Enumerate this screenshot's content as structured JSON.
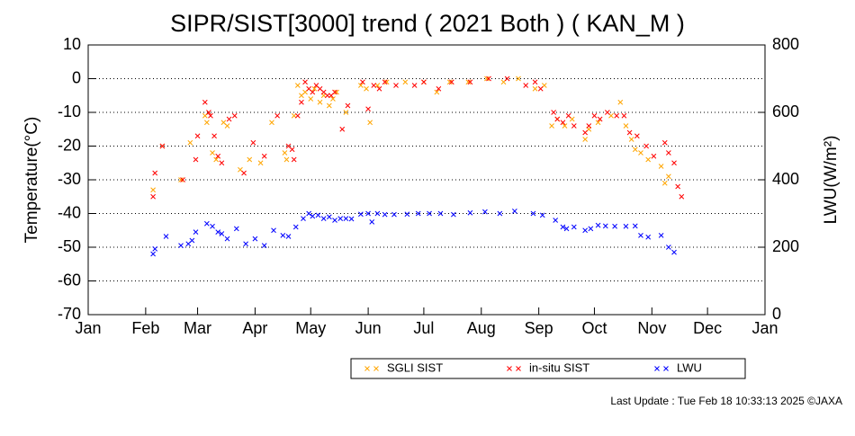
{
  "chart_data": {
    "type": "scatter",
    "title": "SIPR/SIST[3000] trend ( 2021 Both ) ( KAN_M )",
    "y_label": "Temperature(°C)",
    "y2_label": "LWU(W/m²)",
    "footer": "Last Update : Tue Feb 18 10:33:13 2025 ©JAXA",
    "xlim": [
      0,
      365
    ],
    "xticks": [
      {
        "value": 0,
        "label": "Jan"
      },
      {
        "value": 31,
        "label": "Feb"
      },
      {
        "value": 59,
        "label": "Mar"
      },
      {
        "value": 90,
        "label": "Apr"
      },
      {
        "value": 120,
        "label": "May"
      },
      {
        "value": 151,
        "label": "Jun"
      },
      {
        "value": 181,
        "label": "Jul"
      },
      {
        "value": 212,
        "label": "Aug"
      },
      {
        "value": 243,
        "label": "Sep"
      },
      {
        "value": 273,
        "label": "Oct"
      },
      {
        "value": 304,
        "label": "Nov"
      },
      {
        "value": 334,
        "label": "Dec"
      },
      {
        "value": 365,
        "label": "Jan"
      }
    ],
    "ylim": [
      -70,
      10
    ],
    "yticks": [
      -70,
      -60,
      -50,
      -40,
      -30,
      -20,
      -10,
      0,
      10
    ],
    "y2lim": [
      0,
      800
    ],
    "y2ticks": [
      0,
      200,
      400,
      600,
      800
    ],
    "grid": true,
    "series": [
      {
        "name": "SGLI SIST",
        "color": "#ffa500",
        "x": [
          35,
          40,
          50,
          55,
          63,
          64,
          67,
          69,
          73,
          75,
          82,
          87,
          93,
          99,
          106,
          107,
          111,
          113,
          115,
          117,
          120,
          122,
          125,
          127,
          130,
          132,
          134,
          139,
          147,
          150,
          152,
          156,
          161,
          171,
          181,
          188,
          195,
          205,
          215,
          224,
          232,
          241,
          246,
          250,
          253,
          257,
          261,
          268,
          270,
          275,
          282,
          287,
          290,
          293,
          295,
          298,
          302,
          309,
          311,
          313
        ],
        "values": [
          -33,
          -20,
          -30,
          -19,
          -11,
          -13,
          -22,
          -24,
          -13,
          -14,
          -27,
          -24,
          -25,
          -13,
          -22,
          -24,
          -11,
          -2,
          -5,
          -4,
          -6,
          -3,
          -7,
          -5,
          -8,
          -6,
          -4,
          -10,
          -2,
          -3,
          -13,
          -2,
          -1,
          -1,
          -1,
          -4,
          -1,
          -1,
          0,
          -1,
          0,
          -3,
          -2,
          -14,
          -12,
          -14,
          -12,
          -18,
          -15,
          -13,
          -11,
          -7,
          -14,
          -18,
          -21,
          -22,
          -24,
          -26,
          -31,
          -29
        ]
      },
      {
        "name": "in-situ SIST",
        "color": "#ff0000",
        "x": [
          35,
          36,
          40,
          51,
          58,
          59,
          63,
          65,
          66,
          68,
          70,
          72,
          76,
          79,
          84,
          89,
          95,
          102,
          108,
          110,
          111,
          113,
          115,
          117,
          119,
          121,
          123,
          125,
          127,
          129,
          131,
          133,
          137,
          140,
          148,
          151,
          154,
          157,
          160,
          166,
          176,
          181,
          189,
          196,
          206,
          216,
          226,
          236,
          241,
          244,
          251,
          253,
          256,
          259,
          262,
          268,
          270,
          273,
          276,
          280,
          285,
          289,
          292,
          296,
          301,
          305,
          311,
          313,
          316,
          318,
          320
        ],
        "values": [
          -35,
          -28,
          -20,
          -30,
          -24,
          -17,
          -7,
          -10,
          -11,
          -17,
          -23,
          -25,
          -12,
          -11,
          -28,
          -19,
          -23,
          -11,
          -20,
          -21,
          -24,
          -11,
          -7,
          -1,
          -3,
          -4,
          -2,
          -3,
          -4,
          -5,
          -5,
          -4,
          -15,
          -8,
          -1,
          -9,
          -2,
          -3,
          -1,
          -2,
          -2,
          -1,
          -3,
          -1,
          -1,
          0,
          0,
          -2,
          -1,
          -3,
          -10,
          -12,
          -13,
          -11,
          -14,
          -16,
          -14,
          -11,
          -12,
          -10,
          -11,
          -11,
          -16,
          -17,
          -20,
          -23,
          -19,
          -22,
          -25,
          -32,
          -35
        ]
      },
      {
        "name": "LWU",
        "color": "#0000ff",
        "axis": "y2",
        "x": [
          35,
          36,
          42,
          50,
          54,
          56,
          58,
          64,
          67,
          70,
          72,
          75,
          80,
          85,
          90,
          95,
          100,
          105,
          108,
          112,
          116,
          119,
          121,
          124,
          127,
          130,
          133,
          136,
          139,
          142,
          147,
          151,
          153,
          156,
          160,
          165,
          172,
          178,
          184,
          190,
          197,
          206,
          214,
          222,
          230,
          240,
          245,
          252,
          256,
          258,
          262,
          268,
          271,
          275,
          279,
          284,
          290,
          295,
          298,
          302,
          309,
          313,
          316
        ],
        "values": [
          180,
          195,
          232,
          205,
          210,
          220,
          245,
          270,
          262,
          245,
          240,
          225,
          255,
          210,
          225,
          205,
          250,
          235,
          232,
          260,
          285,
          300,
          292,
          295,
          285,
          290,
          280,
          285,
          285,
          284,
          298,
          300,
          275,
          300,
          297,
          297,
          298,
          300,
          300,
          300,
          297,
          302,
          305,
          300,
          307,
          300,
          295,
          280,
          260,
          255,
          260,
          250,
          255,
          265,
          263,
          262,
          262,
          263,
          235,
          230,
          235,
          200,
          185
        ]
      }
    ]
  }
}
